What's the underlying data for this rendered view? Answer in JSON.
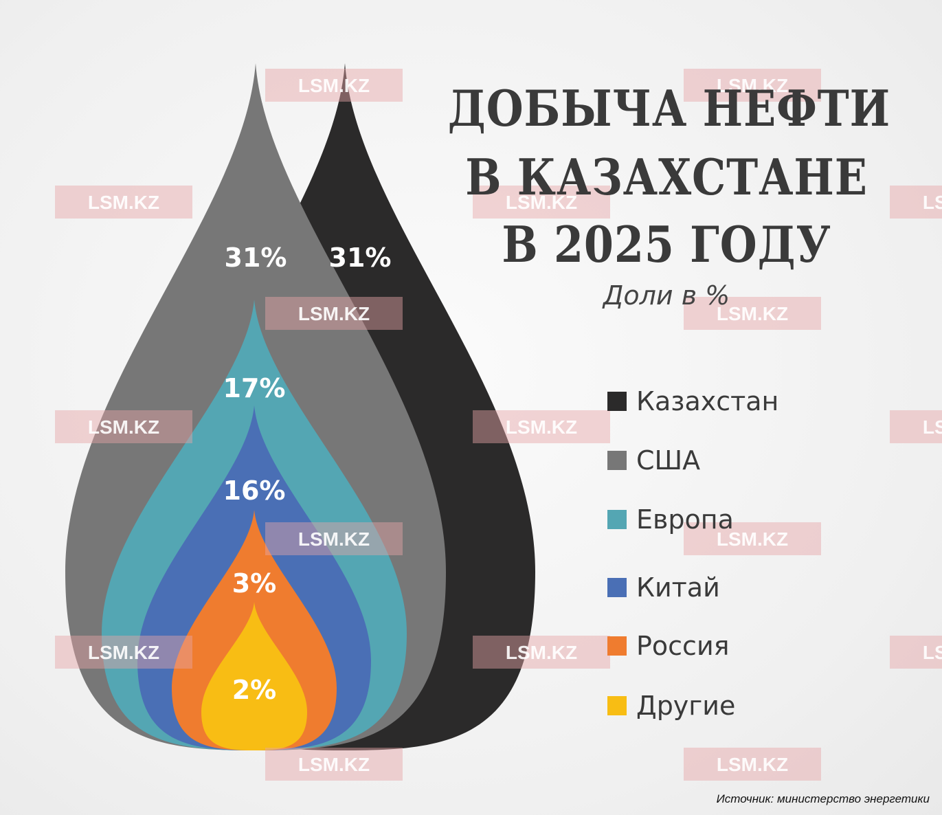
{
  "title": {
    "line1": "ДОБЫЧА НЕФТИ",
    "line2": "В КАЗАХСТАНЕ",
    "line3": "В 2025 ГОДУ"
  },
  "subtitle": "Доли в %",
  "source": "Источник: министерство энергетики",
  "watermark": "LSM.KZ",
  "chart_data": {
    "type": "nested-drop",
    "title": "ДОБЫЧА НЕФТИ В КАЗАХСТАНЕ В 2025 ГОДУ",
    "unit": "%",
    "categories": [
      "Казахстан",
      "США",
      "Европа",
      "Китай",
      "Россия",
      "Другие"
    ],
    "values": [
      31,
      31,
      17,
      16,
      3,
      2
    ],
    "labels": [
      "31%",
      "31%",
      "17%",
      "16%",
      "3%",
      "2%"
    ],
    "colors": [
      "#2b2a2a",
      "#777777",
      "#54a6b3",
      "#4a6fb5",
      "#ef7c2f",
      "#f8bd14"
    ]
  },
  "legend": [
    {
      "label": "Казахстан",
      "color": "#2b2a2a"
    },
    {
      "label": "США",
      "color": "#777777"
    },
    {
      "label": "Европа",
      "color": "#54a6b3"
    },
    {
      "label": "Китай",
      "color": "#4a6fb5"
    },
    {
      "label": "Россия",
      "color": "#ef7c2f"
    },
    {
      "label": "Другие",
      "color": "#f8bd14"
    }
  ]
}
